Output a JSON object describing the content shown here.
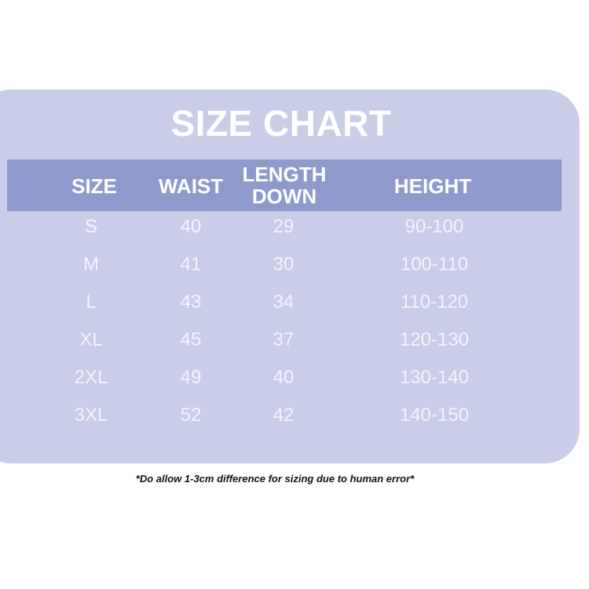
{
  "title": "SIZE CHART",
  "headers": [
    "SIZE",
    "WAIST",
    "LENGTH DOWN",
    "HEIGHT"
  ],
  "header_length_lines": [
    "LENGTH",
    "DOWN"
  ],
  "rows": [
    [
      "S",
      "40",
      "29",
      "90-100"
    ],
    [
      "M",
      "41",
      "30",
      "100-110"
    ],
    [
      "L",
      "43",
      "34",
      "110-120"
    ],
    [
      "XL",
      "45",
      "37",
      "120-130"
    ],
    [
      "2XL",
      "49",
      "40",
      "130-140"
    ],
    [
      "3XL",
      "52",
      "42",
      "140-150"
    ]
  ],
  "note": "*Do allow 1-3cm difference for sizing due to human error*",
  "colors": {
    "card": "#c9cde8",
    "header_band": "#8d9acb",
    "text": "#ffffff"
  }
}
